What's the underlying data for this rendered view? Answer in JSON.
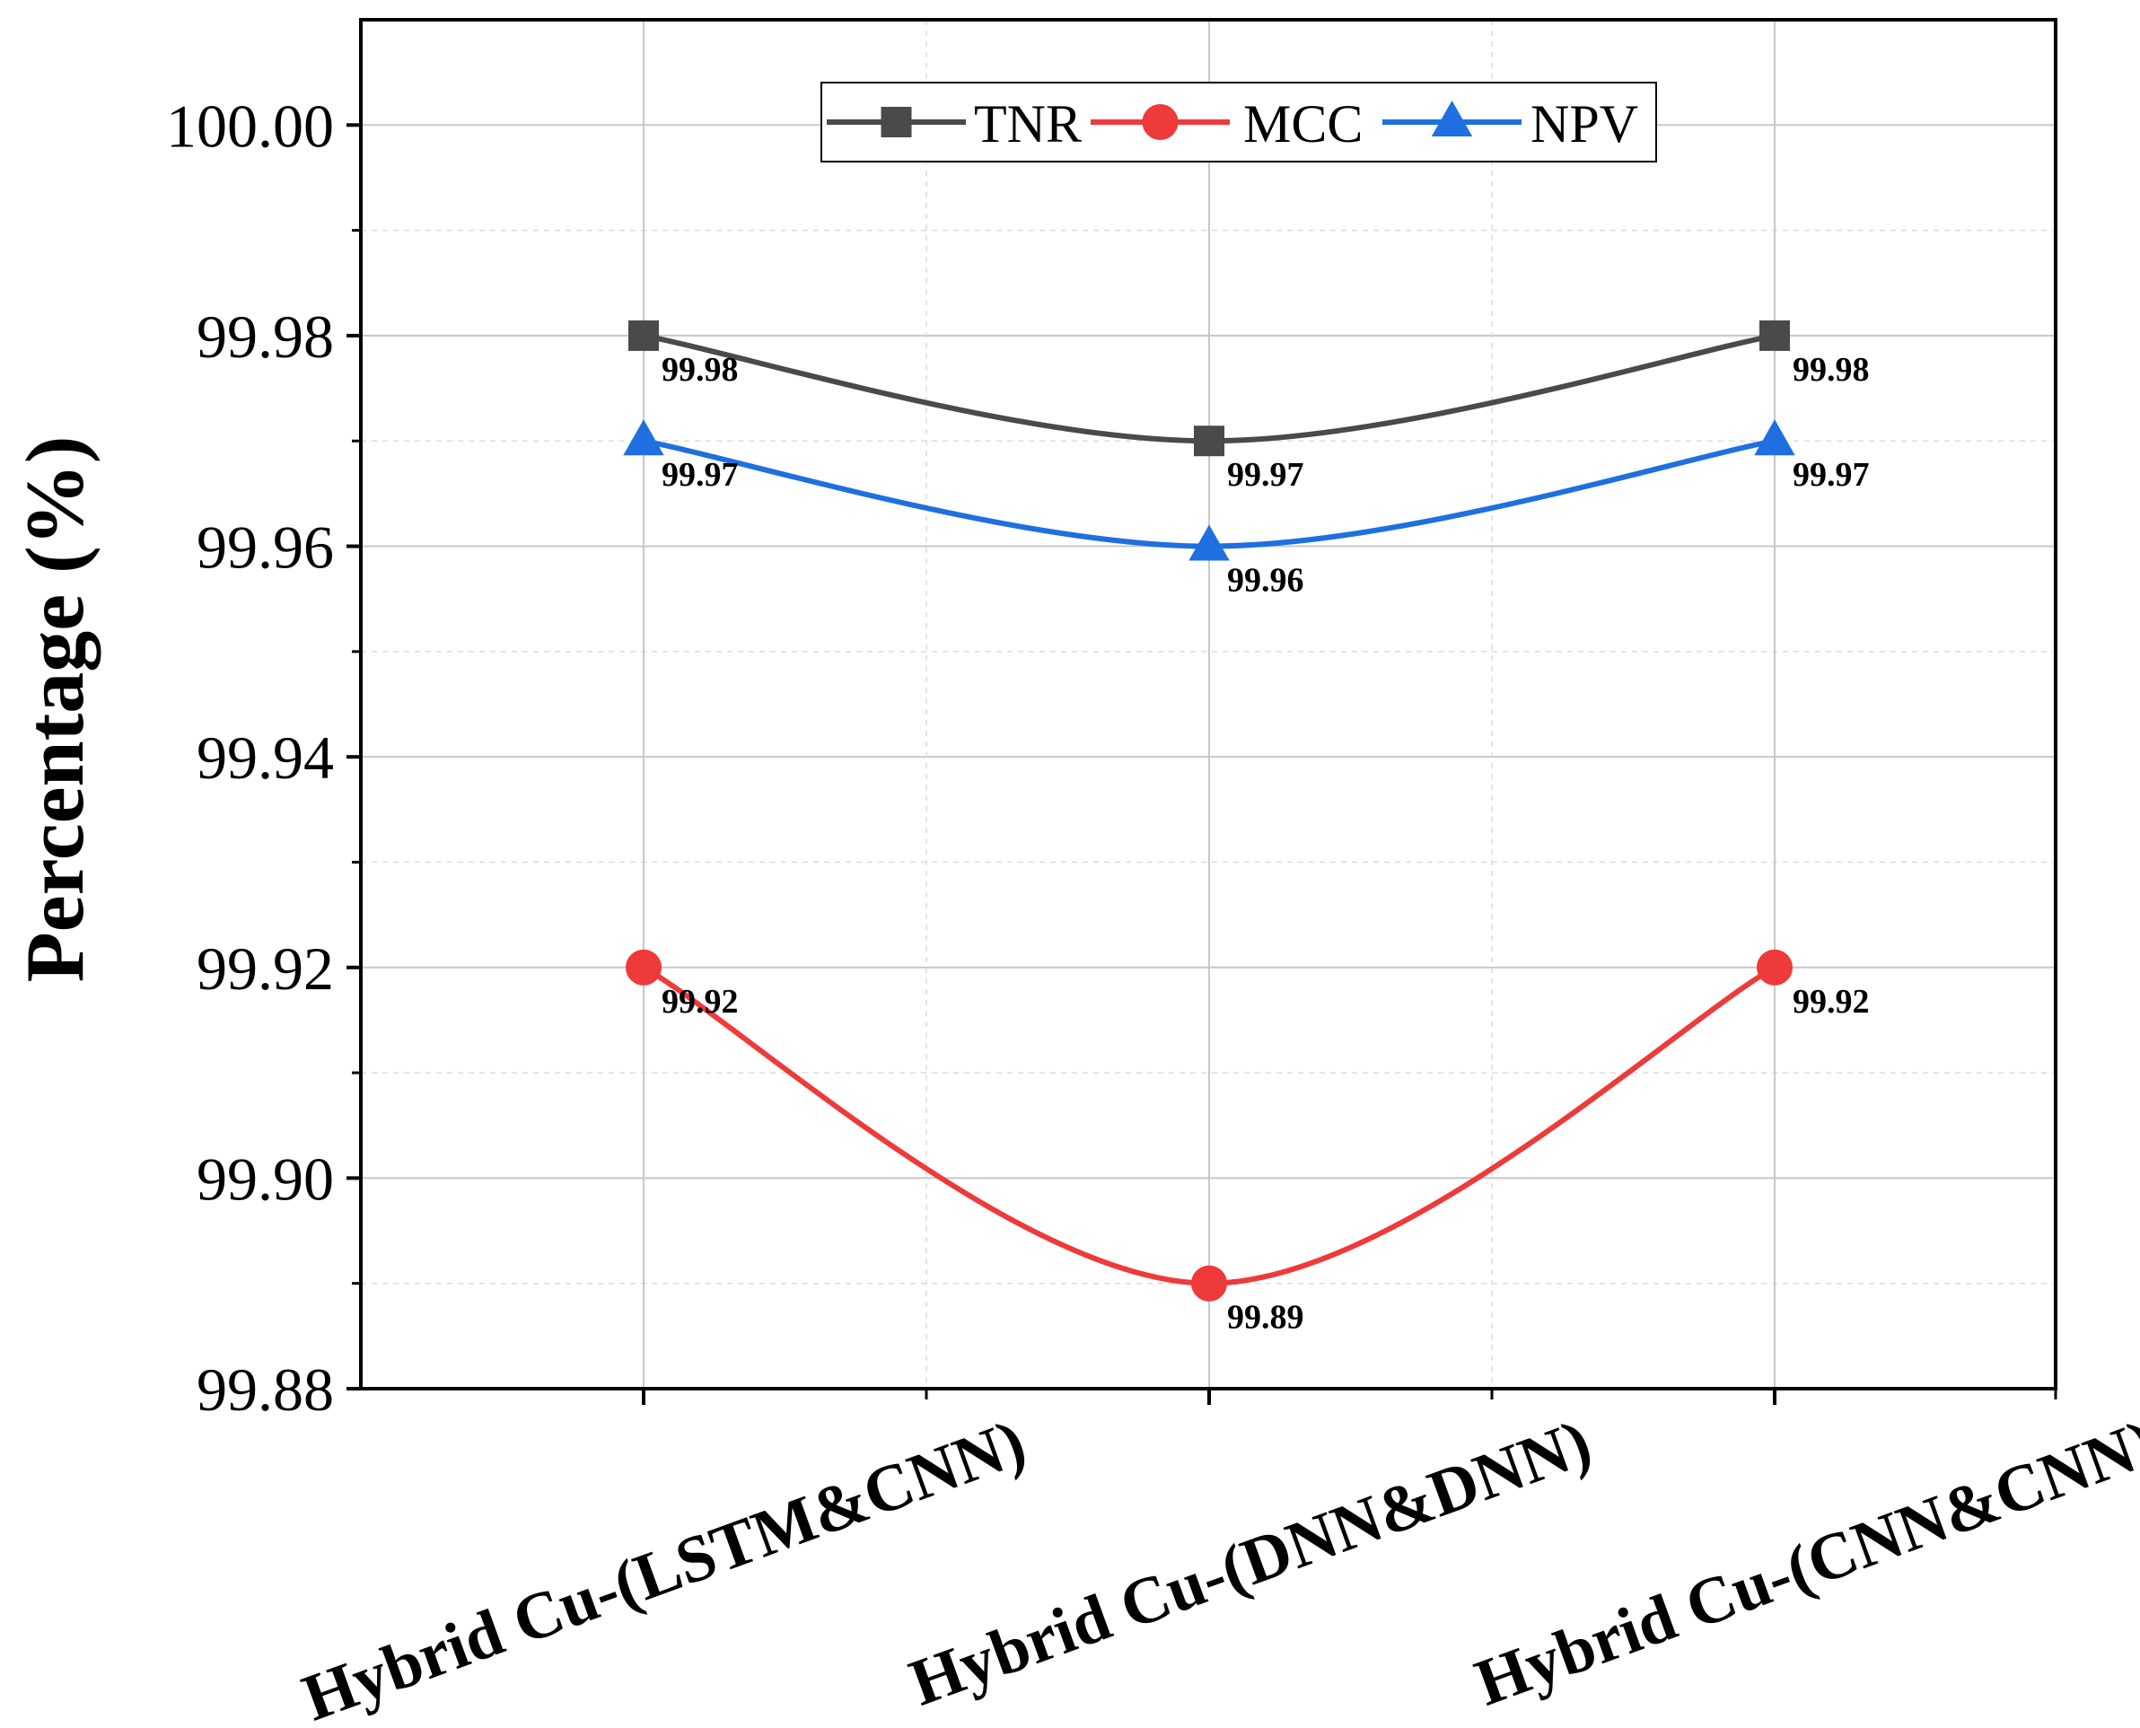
{
  "chart_data": {
    "type": "line",
    "title": "",
    "xlabel": "",
    "ylabel": "Percentage (%)",
    "categories": [
      "Hybrid Cu-(LSTM&CNN)",
      "Hybrid Cu-(DNN&DNN)",
      "Hybrid Cu-(CNN&CNN)"
    ],
    "ylim": [
      99.88,
      100.01
    ],
    "yticks": [
      "99.88",
      "99.90",
      "99.92",
      "99.94",
      "99.96",
      "99.98",
      "100.00"
    ],
    "grid": true,
    "legend_position": "top-center",
    "series": [
      {
        "name": "TNR",
        "color": "#4a4a4a",
        "marker": "square",
        "values": [
          99.98,
          99.97,
          99.98
        ],
        "labels": [
          "99.98",
          "99.97",
          "99.98"
        ]
      },
      {
        "name": "MCC",
        "color": "#ee3a3a",
        "marker": "circle",
        "values": [
          99.92,
          99.89,
          99.92
        ],
        "labels": [
          "99.92",
          "99.89",
          "99.92"
        ]
      },
      {
        "name": "NPV",
        "color": "#1f6fe0",
        "marker": "triangle",
        "values": [
          99.97,
          99.96,
          99.97
        ],
        "labels": [
          "99.97",
          "99.96",
          "99.97"
        ]
      }
    ]
  }
}
